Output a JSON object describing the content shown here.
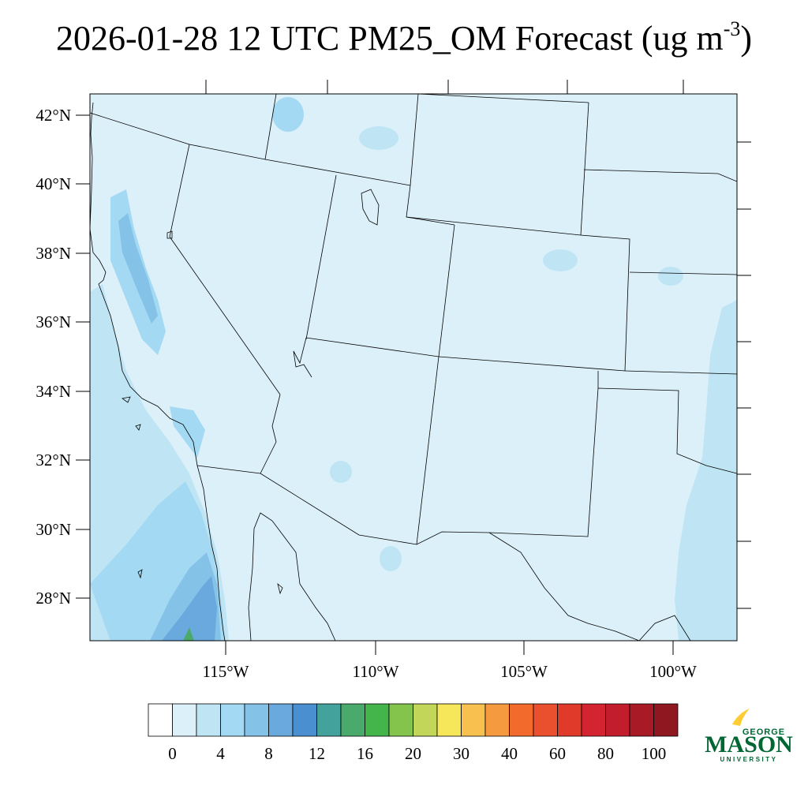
{
  "title": {
    "main": "2026-01-28 12 UTC PM25_OM Forecast (ug m",
    "exponent": "-3",
    "close": ")"
  },
  "map": {
    "background_color": "#dcf0fa",
    "lat_labels": [
      {
        "lat": 42,
        "text": "42°N"
      },
      {
        "lat": 40,
        "text": "40°N"
      },
      {
        "lat": 38,
        "text": "38°N"
      },
      {
        "lat": 36,
        "text": "36°N"
      },
      {
        "lat": 34,
        "text": "34°N"
      },
      {
        "lat": 32,
        "text": "32°N"
      },
      {
        "lat": 30,
        "text": "30°N"
      },
      {
        "lat": 28,
        "text": "28°N"
      }
    ],
    "lon_labels": [
      {
        "lon": -115,
        "text": "115°W"
      },
      {
        "lon": -110,
        "text": "110°W"
      },
      {
        "lon": -105,
        "text": "105°W"
      },
      {
        "lon": -100,
        "text": "100°W"
      }
    ]
  },
  "colorbar": {
    "colors": [
      "#ffffff",
      "#dcf0fa",
      "#bfe5f5",
      "#a3d9f2",
      "#85c2e8",
      "#6aa9de",
      "#4a8fcf",
      "#44a29c",
      "#4aaa6c",
      "#43b54a",
      "#84c44c",
      "#c2d75a",
      "#f6e75a",
      "#f7c04f",
      "#f69a3f",
      "#f26a2c",
      "#ea4f2e",
      "#e03a2a",
      "#d42331",
      "#c21d2c",
      "#a81a25",
      "#8f1720"
    ],
    "labels": [
      "0",
      "4",
      "8",
      "12",
      "16",
      "20",
      "30",
      "40",
      "60",
      "80",
      "100"
    ]
  },
  "logo": {
    "top": "GEORGE",
    "main": "MASON",
    "bottom": "UNIVERSITY",
    "color": "#006633",
    "accent_color": "#ffcc33"
  }
}
